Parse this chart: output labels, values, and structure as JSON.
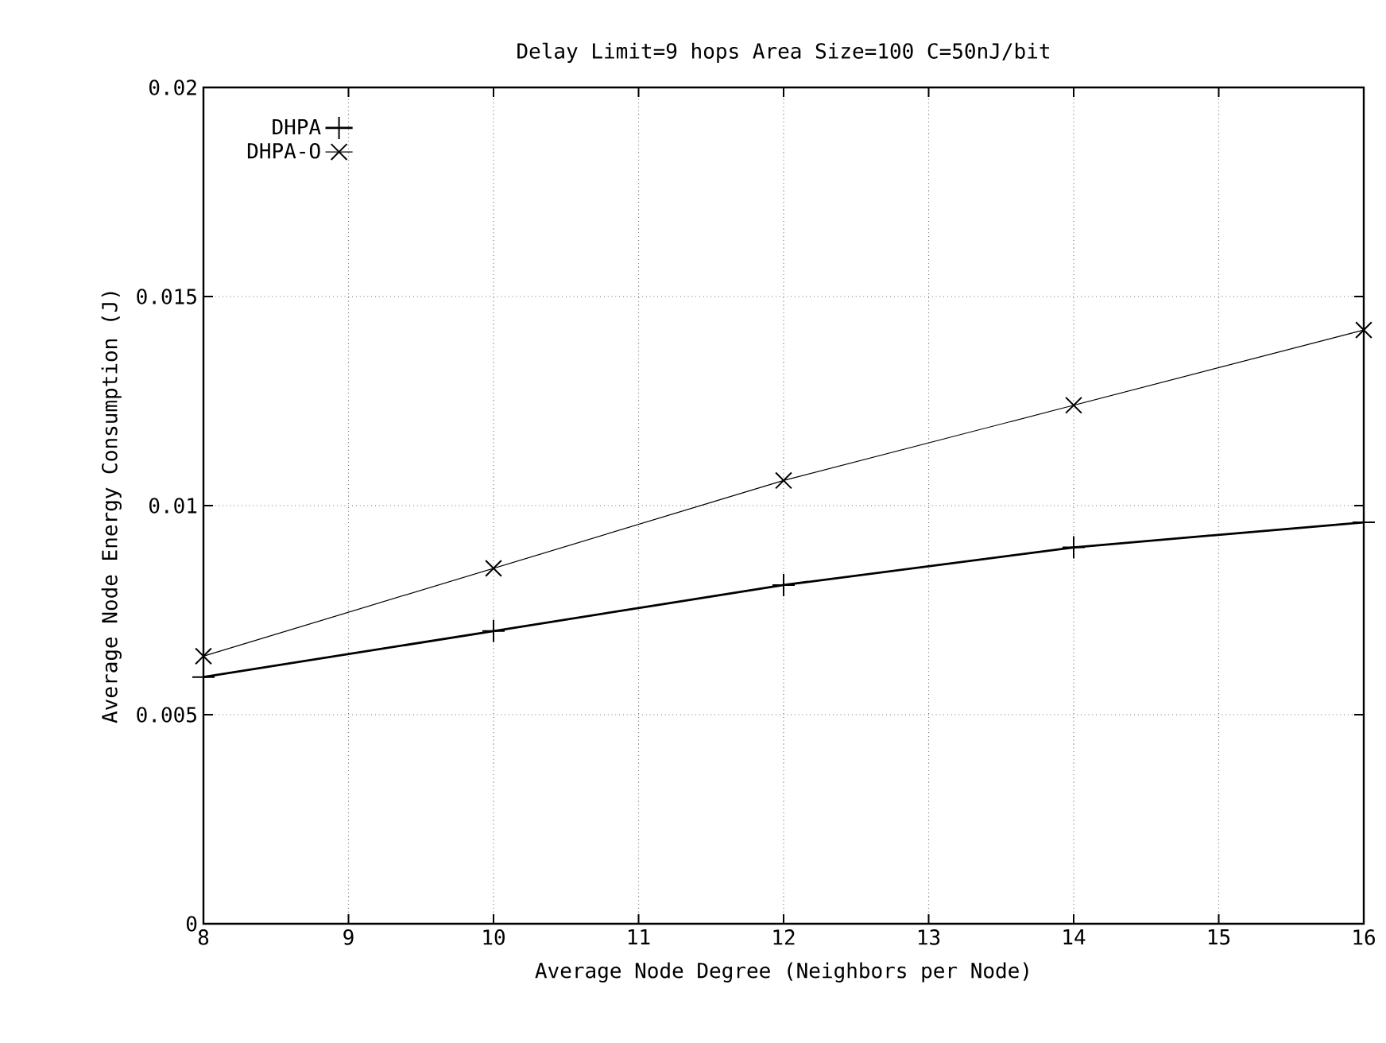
{
  "chart_data": {
    "type": "line",
    "title": "Delay Limit=9 hops      Area Size=100      C=50nJ/bit",
    "xlabel": "Average Node Degree (Neighbors per Node)",
    "ylabel": "Average Node Energy Consumption (J)",
    "x": [
      8,
      10,
      12,
      14,
      16
    ],
    "series": [
      {
        "name": "DHPA",
        "color": "#000000",
        "marker": "plus",
        "values": [
          0.0059,
          0.007,
          0.0081,
          0.009,
          0.0096
        ]
      },
      {
        "name": "DHPA-O",
        "color": "#000000",
        "marker": "cross",
        "values": [
          0.0064,
          0.0085,
          0.0106,
          0.0124,
          0.0142
        ]
      }
    ],
    "xlim": [
      8,
      16
    ],
    "xticks": [
      8,
      9,
      10,
      11,
      12,
      13,
      14,
      15,
      16
    ],
    "ylim": [
      0,
      0.02
    ],
    "yticks": [
      0,
      0.005,
      0.01,
      0.015,
      0.02
    ],
    "grid": true,
    "legend": "top left",
    "line_style": "solid"
  }
}
